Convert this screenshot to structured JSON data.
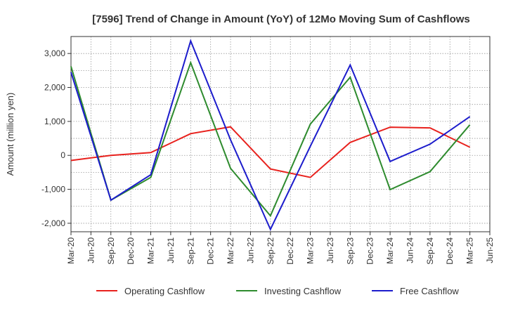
{
  "chart_data": {
    "type": "line",
    "title": "[7596]  Trend of Change in Amount (YoY) of 12Mo Moving Sum of Cashflows",
    "xlabel": "",
    "ylabel": "Amount (million yen)",
    "ylim": [
      -2250,
      3500
    ],
    "yticks": [
      -2000,
      -1000,
      0,
      1000,
      2000,
      3000
    ],
    "ytick_labels": [
      "-2,000",
      "-1,000",
      "0",
      "1,000",
      "2,000",
      "3,000"
    ],
    "categories": [
      "Mar-20",
      "Jun-20",
      "Sep-20",
      "Dec-20",
      "Mar-21",
      "Jun-21",
      "Sep-21",
      "Dec-21",
      "Mar-22",
      "Jun-22",
      "Sep-22",
      "Dec-22",
      "Mar-23",
      "Jun-23",
      "Sep-23",
      "Dec-23",
      "Mar-24",
      "Jun-24",
      "Sep-24",
      "Dec-24",
      "Mar-25",
      "Jun-25"
    ],
    "grid": true,
    "legend_position": "bottom",
    "series": [
      {
        "name": "Operating Cashflow",
        "color": "#e8211d",
        "points": [
          [
            0,
            -150
          ],
          [
            2,
            0
          ],
          [
            4,
            80
          ],
          [
            6,
            640
          ],
          [
            8,
            840
          ],
          [
            10,
            -400
          ],
          [
            12,
            -650
          ],
          [
            14,
            380
          ],
          [
            16,
            830
          ],
          [
            18,
            810
          ],
          [
            20,
            240
          ]
        ]
      },
      {
        "name": "Investing Cashflow",
        "color": "#2e8b2e",
        "points": [
          [
            0,
            2620
          ],
          [
            2,
            -1320
          ],
          [
            4,
            -650
          ],
          [
            6,
            2730
          ],
          [
            8,
            -380
          ],
          [
            10,
            -1780
          ],
          [
            12,
            920
          ],
          [
            14,
            2300
          ],
          [
            16,
            -1010
          ],
          [
            18,
            -480
          ],
          [
            20,
            900
          ]
        ]
      },
      {
        "name": "Free Cashflow",
        "color": "#1c1ccc",
        "points": [
          [
            0,
            2450
          ],
          [
            2,
            -1320
          ],
          [
            4,
            -570
          ],
          [
            6,
            3370
          ],
          [
            8,
            460
          ],
          [
            10,
            -2180
          ],
          [
            12,
            270
          ],
          [
            14,
            2660
          ],
          [
            16,
            -180
          ],
          [
            18,
            330
          ],
          [
            20,
            1140
          ]
        ]
      }
    ]
  }
}
